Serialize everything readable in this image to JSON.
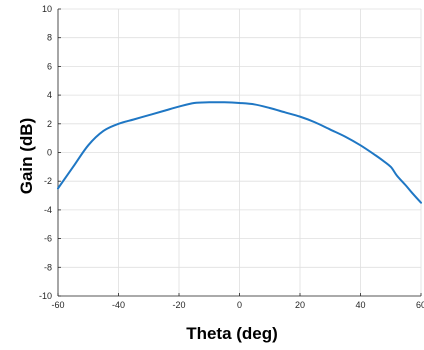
{
  "chart_data": {
    "type": "line",
    "title": "",
    "xlabel": "Theta (deg)",
    "ylabel": "Gain (dB)",
    "xlim": [
      -60,
      60
    ],
    "ylim": [
      -10,
      10
    ],
    "xticks": [
      -60,
      -40,
      -20,
      0,
      20,
      40,
      60
    ],
    "yticks": [
      -10,
      -8,
      -6,
      -4,
      -2,
      0,
      2,
      4,
      6,
      8,
      10
    ],
    "grid": true,
    "line_color": "#1f77c4",
    "series": [
      {
        "x": [
          -60,
          -55,
          -50,
          -45,
          -40,
          -35,
          -30,
          -25,
          -20,
          -15,
          -10,
          -5,
          0,
          5,
          10,
          15,
          20,
          25,
          30,
          35,
          40,
          45,
          47,
          50,
          52,
          55,
          57,
          60
        ],
        "y": [
          -2.5,
          -1.0,
          0.5,
          1.5,
          2.0,
          2.3,
          2.6,
          2.9,
          3.2,
          3.45,
          3.5,
          3.5,
          3.45,
          3.35,
          3.1,
          2.8,
          2.5,
          2.1,
          1.6,
          1.1,
          0.5,
          -0.2,
          -0.5,
          -1.0,
          -1.6,
          -2.3,
          -2.8,
          -3.5
        ]
      }
    ]
  }
}
